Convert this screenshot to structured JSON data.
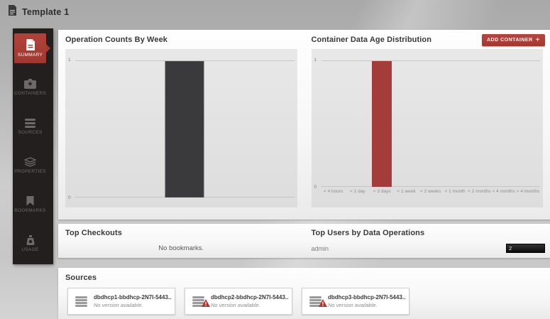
{
  "colors": {
    "accent_red": "#b23c38",
    "sidebar_bg": "#241f1f",
    "ops_bar": "#3a3a3c",
    "age_bar": "#a43c3c",
    "users_bar_bg": "#161616"
  },
  "header": {
    "title": "Template 1"
  },
  "sidebar": {
    "items": [
      {
        "label": "SUMMARY",
        "icon": "document-icon",
        "active": true
      },
      {
        "label": "CONTAINERS",
        "icon": "container-box-icon",
        "active": false
      },
      {
        "label": "SOURCES",
        "icon": "database-stack-icon",
        "active": false
      },
      {
        "label": "PROPERTIES",
        "icon": "layers-icon",
        "active": false
      },
      {
        "label": "BOOKMARKS",
        "icon": "bookmark-icon",
        "active": false
      },
      {
        "label": "USAGE",
        "icon": "usage-meter-icon",
        "active": false
      }
    ]
  },
  "operations_panel": {
    "title": "Operation Counts By Week"
  },
  "age_panel": {
    "title": "Container Data Age Distribution",
    "add_container_button": "ADD CONTAINER",
    "add_container_plus": "+"
  },
  "checkouts_panel": {
    "title": "Top Checkouts",
    "empty_message": "No bookmarks."
  },
  "top_users_panel": {
    "title": "Top Users by Data Operations",
    "rows": [
      {
        "user": "admin",
        "value": "2"
      }
    ]
  },
  "sources_panel": {
    "title": "Sources",
    "cards": [
      {
        "name": "dbdhcp1-bbdhcp-2N7I-5443...",
        "status": "No version available.",
        "warning": false
      },
      {
        "name": "dbdhcp2-bbdhcp-2N7I-5443...",
        "status": "No version available.",
        "warning": true
      },
      {
        "name": "dbdhcp3-bbdhcp-2N7I-5443...",
        "status": "No version available.",
        "warning": true
      }
    ]
  },
  "chart_data": [
    {
      "type": "bar",
      "title": "Operation Counts By Week",
      "categories": [
        ""
      ],
      "values": [
        1
      ],
      "xlabel": "",
      "ylabel": "",
      "ylim": [
        0,
        1
      ],
      "yticks": [
        "1",
        "0"
      ],
      "grid": true,
      "legend": "none",
      "bar_color": "#3a3a3c"
    },
    {
      "type": "bar",
      "title": "Container Data Age Distribution",
      "categories": [
        "< 4 hours",
        "< 1 day",
        "< 3 days",
        "< 1 week",
        "< 2 weeks",
        "< 1 month",
        "< 2 months",
        "< 4 months",
        "> 4 months"
      ],
      "values": [
        0,
        0,
        1,
        0,
        0,
        0,
        0,
        0,
        0
      ],
      "xlabel": "",
      "ylabel": "",
      "ylim": [
        0,
        1
      ],
      "yticks": [
        "1",
        "0"
      ],
      "grid": true,
      "legend": "none",
      "bar_color": "#a43c3c"
    },
    {
      "type": "bar",
      "title": "Top Users by Data Operations",
      "categories": [
        "admin"
      ],
      "values": [
        2
      ]
    }
  ]
}
